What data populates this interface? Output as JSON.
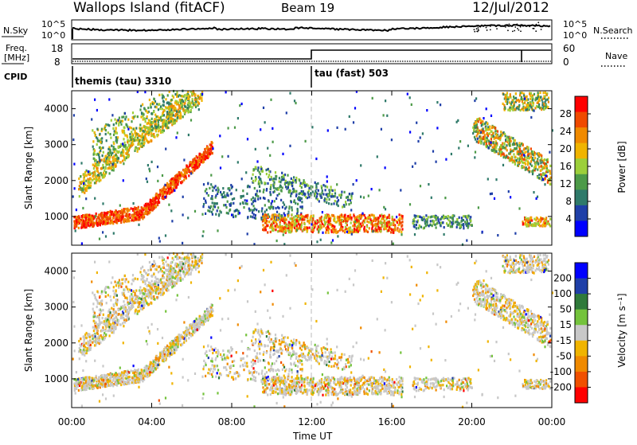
{
  "header": {
    "station": "Wallops Island (fitACF)",
    "beam": "Beam 19",
    "date": "12/Jul/2012"
  },
  "top_panel": {
    "label_left_1": "N.Sky",
    "label_right_1": "N.Search",
    "label_left_2a": "Freq.",
    "label_left_2b": "[MHz]",
    "label_right_2": "Nave",
    "label_cpid": "CPID",
    "nsky_ticks": [
      "10^5",
      "10^0"
    ],
    "nsearch_ticks": [
      "10^5",
      "10^0"
    ],
    "freq_ticks": [
      "18",
      "8"
    ],
    "nave_ticks": [
      "60",
      "0"
    ],
    "cpid_left": "themis (tau) 3310",
    "cpid_right": "tau (fast) 503"
  },
  "colors": {
    "power": [
      "#0000ff",
      "#1f3fa8",
      "#2f7a6a",
      "#4c9a48",
      "#9ccf3a",
      "#f0b400",
      "#f08a00",
      "#f04a00",
      "#ff0000"
    ],
    "velocity": [
      "#0000ff",
      "#1f3fa8",
      "#2f7a3a",
      "#74c33c",
      "#c8c8c8",
      "#f0b400",
      "#f08a00",
      "#f05000",
      "#ff0000"
    ]
  },
  "chart_data": [
    {
      "type": "heatmap",
      "name": "power",
      "xlabel": "",
      "ylabel": "Slant Range [km]",
      "ylim": [
        200,
        4500
      ],
      "y_ticks": [
        "1000",
        "2000",
        "3000",
        "4000"
      ],
      "colorbar_label": "Power [dB]",
      "colorbar_ticks": [
        "28",
        "24",
        "20",
        "16",
        "12",
        "8",
        "4"
      ],
      "colorbar_range": [
        0,
        32
      ],
      "cpid_change_time": "12:00"
    },
    {
      "type": "heatmap",
      "name": "velocity",
      "xlabel": "Time UT",
      "ylabel": "Slant Range [km]",
      "ylim": [
        200,
        4500
      ],
      "y_ticks": [
        "1000",
        "2000",
        "3000",
        "4000"
      ],
      "colorbar_label": "Velocity [m s⁻¹]",
      "colorbar_ticks": [
        "200",
        "100",
        "50",
        "15",
        "-15",
        "-50",
        "-100",
        "-200"
      ],
      "x_ticks": [
        "00:00",
        "04:00",
        "08:00",
        "12:00",
        "16:00",
        "20:00",
        "00:00"
      ]
    }
  ]
}
